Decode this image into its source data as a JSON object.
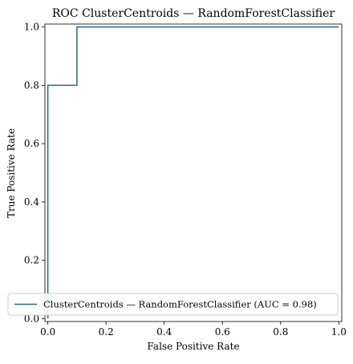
{
  "chart_data": {
    "type": "line",
    "title": "ROC ClusterCentroids — RandomForestClassifier",
    "xlabel": "False Positive Rate",
    "ylabel": "True Positive Rate",
    "xlim": [
      -0.01,
      1.01
    ],
    "ylim": [
      -0.01,
      1.01
    ],
    "x_ticks": [
      0.0,
      0.2,
      0.4,
      0.6,
      0.8,
      1.0
    ],
    "x_tick_labels": [
      "0.0",
      "0.2",
      "0.4",
      "0.6",
      "0.8",
      "1.0"
    ],
    "y_ticks": [
      0.0,
      0.2,
      0.4,
      0.6,
      0.8,
      1.0
    ],
    "y_tick_labels": [
      "0.0",
      "0.2",
      "0.4",
      "0.6",
      "0.8",
      "1.0"
    ],
    "grid": false,
    "legend_position": "lower-right",
    "series": [
      {
        "name": "ClusterCentroids — RandomForestClassifier (AUC = 0.98)",
        "color": "#1f6b8c",
        "x": [
          0.0,
          0.0,
          0.0,
          0.1,
          0.1,
          1.0
        ],
        "y": [
          0.0,
          0.1,
          0.8,
          0.8,
          1.0,
          1.0
        ]
      }
    ]
  }
}
